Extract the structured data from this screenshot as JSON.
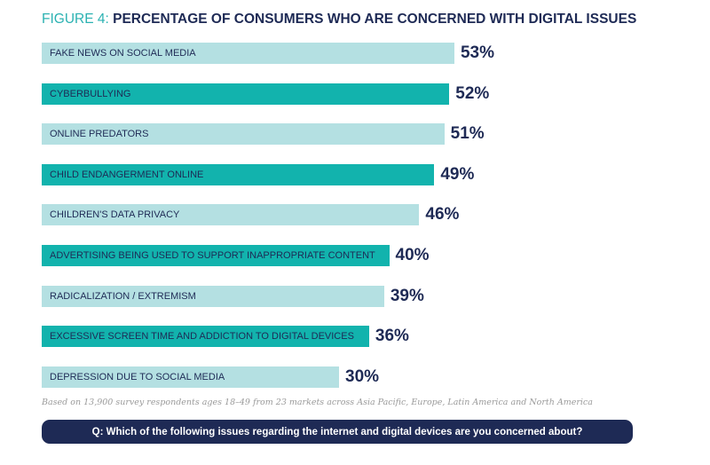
{
  "chart_data": {
    "type": "bar",
    "orientation": "horizontal",
    "title_prefix": "FIGURE 4:",
    "title": "PERCENTAGE OF CONSUMERS WHO ARE CONCERNED WITH DIGITAL ISSUES",
    "categories": [
      "FAKE NEWS ON SOCIAL MEDIA",
      "CYBERBULLYING",
      "ONLINE PREDATORS",
      "CHILD ENDANGERMENT ONLINE",
      "CHILDREN'S DATA PRIVACY",
      "ADVERTISING BEING USED TO SUPPORT INAPPROPRIATE CONTENT",
      "RADICALIZATION / EXTREMISM",
      "EXCESSIVE SCREEN TIME AND ADDICTION TO DIGITAL DEVICES",
      "DEPRESSION DUE TO SOCIAL MEDIA"
    ],
    "values": [
      53,
      52,
      51,
      49,
      46,
      40,
      39,
      36,
      30
    ],
    "value_labels": [
      "53%",
      "52%",
      "51%",
      "49%",
      "46%",
      "40%",
      "39%",
      "36%",
      "30%"
    ],
    "grid": false,
    "colors": {
      "light": "#b4e0e2",
      "dark": "#12b3ad",
      "text": "#1e2a55",
      "title_prefix": "#2bb2b2"
    }
  },
  "footnote": "Based on 13,900 survey respondents ages 18–49 from 23 markets across Asia Pacific, Europe, Latin America and North America",
  "question": "Q: Which of the following issues regarding the internet and digital devices are you concerned about?"
}
